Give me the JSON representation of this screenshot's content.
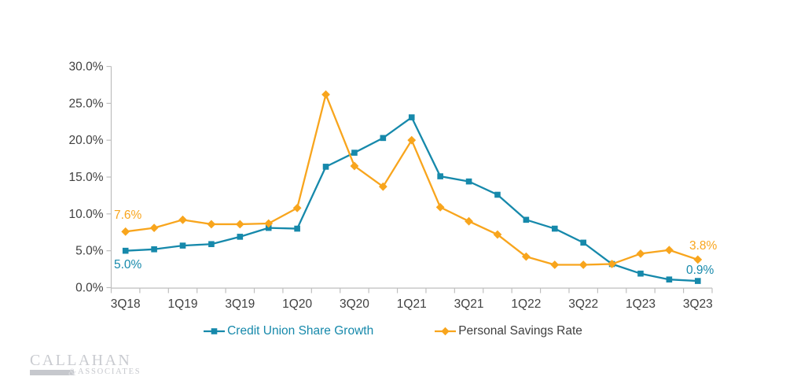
{
  "chart_data": {
    "type": "line",
    "categories": [
      "3Q18",
      "4Q18",
      "1Q19",
      "2Q19",
      "3Q19",
      "4Q19",
      "1Q20",
      "2Q20",
      "3Q20",
      "4Q20",
      "1Q21",
      "2Q21",
      "3Q21",
      "4Q21",
      "1Q22",
      "2Q22",
      "3Q22",
      "4Q22",
      "1Q23",
      "2Q23",
      "3Q23"
    ],
    "x_tick_labels": [
      "3Q18",
      "1Q19",
      "3Q19",
      "1Q20",
      "3Q20",
      "1Q21",
      "3Q21",
      "1Q22",
      "3Q22",
      "1Q23",
      "3Q23"
    ],
    "series": [
      {
        "name": "Credit Union Share Growth",
        "marker": "square",
        "color": "#1689AB",
        "values": [
          5.0,
          5.2,
          5.7,
          5.9,
          6.9,
          8.1,
          8.0,
          16.4,
          18.3,
          20.3,
          23.1,
          15.1,
          14.4,
          12.6,
          9.2,
          8.0,
          6.1,
          3.2,
          1.9,
          1.1,
          0.9
        ]
      },
      {
        "name": "Personal Savings Rate",
        "marker": "diamond",
        "color": "#F8A51D",
        "values": [
          7.6,
          8.1,
          9.2,
          8.6,
          8.6,
          8.7,
          10.8,
          26.2,
          16.5,
          13.7,
          20.0,
          10.9,
          9.0,
          7.2,
          4.2,
          3.1,
          3.1,
          3.2,
          4.6,
          5.1,
          3.8
        ]
      }
    ],
    "ylim": [
      0,
      30
    ],
    "y_ticks": [
      "0.0%",
      "5.0%",
      "10.0%",
      "15.0%",
      "20.0%",
      "25.0%",
      "30.0%"
    ],
    "y_tick_values": [
      0,
      5,
      10,
      15,
      20,
      25,
      30
    ],
    "grid": false,
    "legend_position": "bottom",
    "colors": {
      "axis": "#BFBFBF",
      "tick_text": "#404040"
    },
    "annotations": [
      {
        "text": "7.6%",
        "series": "Personal Savings Rate",
        "point": "3Q18"
      },
      {
        "text": "5.0%",
        "series": "Credit Union Share Growth",
        "point": "3Q18"
      },
      {
        "text": "3.8%",
        "series": "Personal Savings Rate",
        "point": "3Q23"
      },
      {
        "text": "0.9%",
        "series": "Credit Union Share Growth",
        "point": "3Q23"
      }
    ]
  },
  "logo": {
    "name": "CALLAHAN",
    "amp": "&",
    "associates": "ASSOCIATES"
  }
}
